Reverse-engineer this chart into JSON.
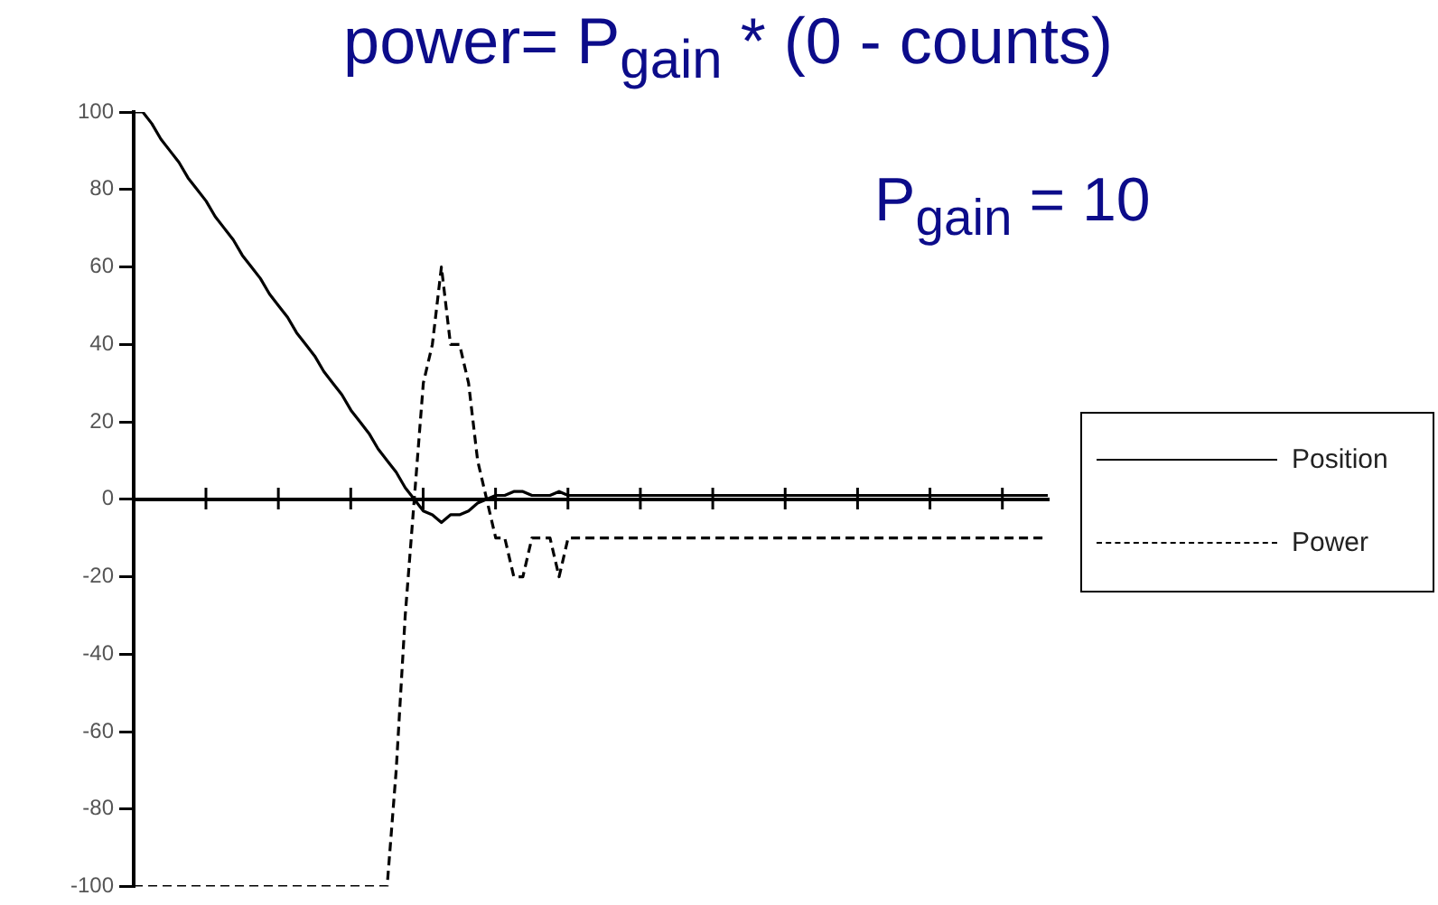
{
  "chart_data": {
    "type": "line",
    "title": "power= P$_{gain}$ * (0 - counts)",
    "annotations": [
      "P$_{gain}$ = 10"
    ],
    "categories": [
      null,
      null,
      null,
      null,
      null,
      null,
      null,
      null,
      null,
      null,
      null,
      null,
      null,
      null,
      null,
      null,
      null,
      null,
      null,
      null,
      null,
      null,
      null,
      null,
      null,
      null,
      null,
      null,
      null,
      null,
      null,
      null,
      null,
      null,
      null,
      null,
      null,
      null,
      null,
      null,
      null,
      null,
      null,
      null,
      null,
      null,
      null,
      null,
      null,
      null,
      null,
      null,
      null,
      null,
      null,
      null,
      null,
      null,
      null,
      null,
      null,
      null,
      null,
      null,
      null,
      null,
      null,
      null,
      null,
      null,
      null,
      null,
      null,
      null,
      null,
      null,
      null,
      null,
      null,
      null,
      null,
      null,
      null,
      null,
      null,
      null,
      null,
      null,
      null,
      null,
      null,
      null,
      null,
      null,
      null,
      null,
      null,
      null,
      null,
      null,
      null,
      null
    ],
    "ylim": [
      -100,
      100
    ],
    "yticks": [
      -100,
      -80,
      -60,
      -40,
      -20,
      0,
      20,
      40,
      60,
      80,
      100
    ],
    "tick_labels": "y",
    "legend": "right",
    "series": [
      {
        "name": "Position",
        "color": "#000000",
        "line_style": "solid",
        "values": [
          100,
          100,
          97,
          93,
          90,
          87,
          83,
          80,
          77,
          73,
          70,
          67,
          63,
          60,
          57,
          53,
          50,
          47,
          43,
          40,
          37,
          33,
          30,
          27,
          23,
          20,
          17,
          13,
          10,
          7,
          3,
          0,
          -3,
          -4,
          -6,
          -4,
          -4,
          -3,
          -1,
          0,
          1,
          1,
          2,
          2,
          1,
          1,
          1,
          2,
          1,
          1,
          1,
          1,
          1,
          1,
          1,
          1,
          1,
          1,
          1,
          1,
          1,
          1,
          1,
          1,
          1,
          1,
          1,
          1,
          1,
          1,
          1,
          1,
          1,
          1,
          1,
          1,
          1,
          1,
          1,
          1,
          1,
          1,
          1,
          1,
          1,
          1,
          1,
          1,
          1,
          1,
          1,
          1,
          1,
          1,
          1,
          1,
          1,
          1,
          1,
          1,
          1,
          1
        ]
      },
      {
        "name": "Power",
        "color": "#000000",
        "line_style": "dashed",
        "values": [
          -100,
          -100,
          -100,
          -100,
          -100,
          -100,
          -100,
          -100,
          -100,
          -100,
          -100,
          -100,
          -100,
          -100,
          -100,
          -100,
          -100,
          -100,
          -100,
          -100,
          -100,
          -100,
          -100,
          -100,
          -100,
          -100,
          -100,
          -100,
          -100,
          -70,
          -30,
          0,
          30,
          40,
          60,
          40,
          40,
          30,
          10,
          0,
          -10,
          -10,
          -20,
          -20,
          -10,
          -10,
          -10,
          -20,
          -10,
          -10,
          -10,
          -10,
          -10,
          -10,
          -10,
          -10,
          -10,
          -10,
          -10,
          -10,
          -10,
          -10,
          -10,
          -10,
          -10,
          -10,
          -10,
          -10,
          -10,
          -10,
          -10,
          -10,
          -10,
          -10,
          -10,
          -10,
          -10,
          -10,
          -10,
          -10,
          -10,
          -10,
          -10,
          -10,
          -10,
          -10,
          -10,
          -10,
          -10,
          -10,
          -10,
          -10,
          -10,
          -10,
          -10,
          -10,
          -10,
          -10,
          -10,
          -10,
          -10,
          -10
        ]
      }
    ]
  }
}
